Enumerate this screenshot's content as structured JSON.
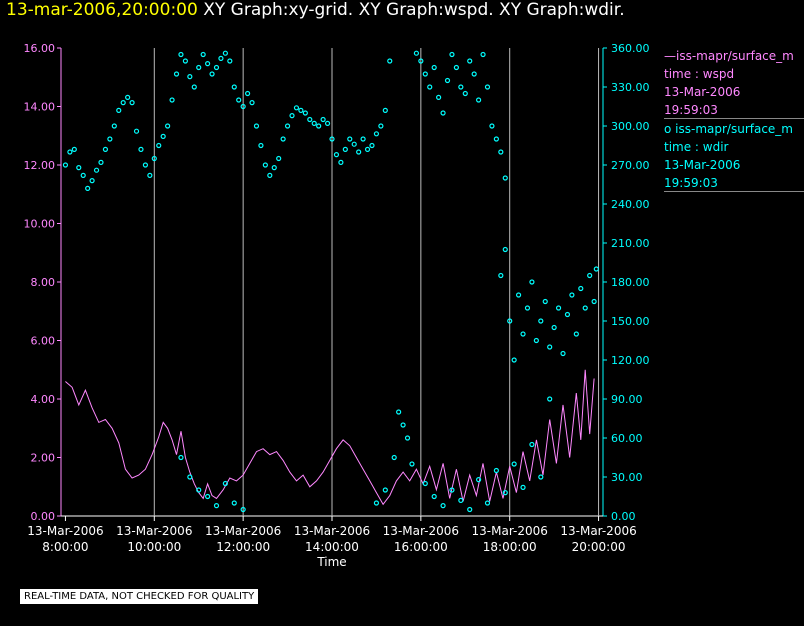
{
  "header": {
    "date": "13-mar-2006,20:00:00",
    "graphs": "XY Graph:xy-grid.  XY Graph:wspd.  XY Graph:wdir."
  },
  "legend": [
    {
      "line": "—iss-mapr/surface_m",
      "field": "time : wspd",
      "date": "13-Mar-2006",
      "time": "19:59:03",
      "color": "#ff88ff"
    },
    {
      "line": "o  iss-mapr/surface_m",
      "field": "time : wdir",
      "date": "13-Mar-2006",
      "time": "19:59:03",
      "color": "#00ffff"
    }
  ],
  "footer": "REAL-TIME DATA, NOT CHECKED FOR QUALITY",
  "chart_data": {
    "type": "line+scatter",
    "xlabel": "Time",
    "x_range_hours": [
      7.9,
      20.1
    ],
    "x_ticks": [
      {
        "hour": 8,
        "date": "13-Mar-2006",
        "time": "8:00:00"
      },
      {
        "hour": 10,
        "date": "13-Mar-2006",
        "time": "10:00:00"
      },
      {
        "hour": 12,
        "date": "13-Mar-2006",
        "time": "12:00:00"
      },
      {
        "hour": 14,
        "date": "13-Mar-2006",
        "time": "14:00:00"
      },
      {
        "hour": 16,
        "date": "13-Mar-2006",
        "time": "16:00:00"
      },
      {
        "hour": 18,
        "date": "13-Mar-2006",
        "time": "18:00:00"
      },
      {
        "hour": 20,
        "date": "13-Mar-2006",
        "time": "20:00:00"
      }
    ],
    "grid_hours": [
      10,
      12,
      14,
      16,
      18,
      20
    ],
    "left_axis": {
      "name": "wspd",
      "min": 0,
      "max": 16,
      "color": "#ff88ff",
      "ticks": [
        "0.00",
        "2.00",
        "4.00",
        "6.00",
        "8.00",
        "10.00",
        "12.00",
        "14.00",
        "16.00"
      ]
    },
    "right_axis": {
      "name": "wdir",
      "min": 0,
      "max": 360,
      "color": "#00ffff",
      "ticks": [
        "0.00",
        "30.00",
        "60.00",
        "90.00",
        "120.00",
        "150.00",
        "180.00",
        "210.00",
        "240.00",
        "270.00",
        "300.00",
        "330.00",
        "360.00"
      ]
    },
    "wspd_series": [
      [
        8.0,
        4.6
      ],
      [
        8.15,
        4.4
      ],
      [
        8.3,
        3.8
      ],
      [
        8.45,
        4.3
      ],
      [
        8.6,
        3.7
      ],
      [
        8.75,
        3.2
      ],
      [
        8.9,
        3.3
      ],
      [
        9.05,
        3.0
      ],
      [
        9.2,
        2.5
      ],
      [
        9.35,
        1.6
      ],
      [
        9.5,
        1.3
      ],
      [
        9.65,
        1.4
      ],
      [
        9.8,
        1.6
      ],
      [
        9.95,
        2.1
      ],
      [
        10.1,
        2.7
      ],
      [
        10.2,
        3.2
      ],
      [
        10.3,
        3.0
      ],
      [
        10.4,
        2.6
      ],
      [
        10.5,
        2.1
      ],
      [
        10.6,
        2.9
      ],
      [
        10.7,
        2.0
      ],
      [
        10.8,
        1.5
      ],
      [
        10.9,
        1.1
      ],
      [
        11.0,
        0.8
      ],
      [
        11.1,
        0.6
      ],
      [
        11.2,
        1.1
      ],
      [
        11.3,
        0.7
      ],
      [
        11.4,
        0.6
      ],
      [
        11.55,
        0.9
      ],
      [
        11.7,
        1.3
      ],
      [
        11.85,
        1.2
      ],
      [
        12.0,
        1.4
      ],
      [
        12.15,
        1.8
      ],
      [
        12.3,
        2.2
      ],
      [
        12.45,
        2.3
      ],
      [
        12.6,
        2.1
      ],
      [
        12.75,
        2.2
      ],
      [
        12.9,
        1.9
      ],
      [
        13.05,
        1.5
      ],
      [
        13.2,
        1.2
      ],
      [
        13.35,
        1.4
      ],
      [
        13.5,
        1.0
      ],
      [
        13.65,
        1.2
      ],
      [
        13.8,
        1.5
      ],
      [
        13.95,
        1.9
      ],
      [
        14.1,
        2.3
      ],
      [
        14.25,
        2.6
      ],
      [
        14.4,
        2.4
      ],
      [
        14.55,
        2.0
      ],
      [
        14.7,
        1.6
      ],
      [
        14.85,
        1.2
      ],
      [
        15.0,
        0.8
      ],
      [
        15.15,
        0.4
      ],
      [
        15.3,
        0.7
      ],
      [
        15.45,
        1.2
      ],
      [
        15.6,
        1.5
      ],
      [
        15.75,
        1.2
      ],
      [
        15.9,
        1.6
      ],
      [
        16.05,
        1.1
      ],
      [
        16.2,
        1.7
      ],
      [
        16.35,
        0.9
      ],
      [
        16.5,
        1.8
      ],
      [
        16.65,
        0.6
      ],
      [
        16.8,
        1.6
      ],
      [
        16.95,
        0.5
      ],
      [
        17.1,
        1.4
      ],
      [
        17.25,
        0.7
      ],
      [
        17.4,
        1.8
      ],
      [
        17.55,
        0.5
      ],
      [
        17.7,
        1.5
      ],
      [
        17.85,
        0.6
      ],
      [
        18.0,
        1.7
      ],
      [
        18.15,
        0.8
      ],
      [
        18.3,
        2.2
      ],
      [
        18.45,
        1.2
      ],
      [
        18.6,
        2.6
      ],
      [
        18.75,
        1.4
      ],
      [
        18.9,
        3.3
      ],
      [
        19.05,
        1.8
      ],
      [
        19.2,
        3.8
      ],
      [
        19.35,
        2.0
      ],
      [
        19.5,
        4.2
      ],
      [
        19.6,
        2.6
      ],
      [
        19.7,
        5.0
      ],
      [
        19.8,
        2.8
      ],
      [
        19.9,
        4.7
      ]
    ],
    "wdir_points": [
      [
        8.0,
        270
      ],
      [
        8.1,
        280
      ],
      [
        8.2,
        282
      ],
      [
        8.3,
        268
      ],
      [
        8.4,
        262
      ],
      [
        8.5,
        252
      ],
      [
        8.6,
        258
      ],
      [
        8.7,
        266
      ],
      [
        8.8,
        272
      ],
      [
        8.9,
        282
      ],
      [
        9.0,
        290
      ],
      [
        9.1,
        300
      ],
      [
        9.2,
        312
      ],
      [
        9.3,
        318
      ],
      [
        9.4,
        322
      ],
      [
        9.5,
        318
      ],
      [
        9.6,
        296
      ],
      [
        9.7,
        282
      ],
      [
        9.8,
        270
      ],
      [
        9.9,
        262
      ],
      [
        10.0,
        275
      ],
      [
        10.1,
        285
      ],
      [
        10.2,
        292
      ],
      [
        10.3,
        300
      ],
      [
        10.4,
        320
      ],
      [
        10.5,
        340
      ],
      [
        10.6,
        355
      ],
      [
        10.7,
        350
      ],
      [
        10.8,
        338
      ],
      [
        10.9,
        330
      ],
      [
        11.0,
        345
      ],
      [
        11.1,
        355
      ],
      [
        11.2,
        348
      ],
      [
        11.3,
        340
      ],
      [
        11.4,
        345
      ],
      [
        11.5,
        352
      ],
      [
        11.6,
        356
      ],
      [
        11.7,
        350
      ],
      [
        11.8,
        330
      ],
      [
        11.9,
        320
      ],
      [
        12.0,
        315
      ],
      [
        12.1,
        325
      ],
      [
        12.2,
        318
      ],
      [
        12.3,
        300
      ],
      [
        12.4,
        285
      ],
      [
        12.5,
        270
      ],
      [
        12.6,
        262
      ],
      [
        12.7,
        268
      ],
      [
        12.8,
        275
      ],
      [
        12.9,
        290
      ],
      [
        13.0,
        300
      ],
      [
        13.1,
        308
      ],
      [
        13.2,
        314
      ],
      [
        13.3,
        312
      ],
      [
        13.4,
        310
      ],
      [
        13.5,
        305
      ],
      [
        13.6,
        302
      ],
      [
        13.7,
        300
      ],
      [
        13.8,
        305
      ],
      [
        13.9,
        302
      ],
      [
        14.0,
        290
      ],
      [
        14.1,
        278
      ],
      [
        14.2,
        272
      ],
      [
        14.3,
        282
      ],
      [
        14.4,
        290
      ],
      [
        14.5,
        286
      ],
      [
        14.6,
        280
      ],
      [
        14.7,
        290
      ],
      [
        14.8,
        282
      ],
      [
        14.9,
        285
      ],
      [
        15.0,
        294
      ],
      [
        15.1,
        300
      ],
      [
        15.2,
        312
      ],
      [
        15.3,
        350
      ],
      [
        15.5,
        80
      ],
      [
        15.6,
        70
      ],
      [
        15.7,
        60
      ],
      [
        15.8,
        40
      ],
      [
        15.9,
        356
      ],
      [
        16.0,
        350
      ],
      [
        16.1,
        340
      ],
      [
        16.2,
        330
      ],
      [
        16.3,
        345
      ],
      [
        16.4,
        322
      ],
      [
        16.5,
        310
      ],
      [
        16.6,
        335
      ],
      [
        16.7,
        355
      ],
      [
        16.8,
        345
      ],
      [
        16.9,
        330
      ],
      [
        17.0,
        325
      ],
      [
        17.1,
        350
      ],
      [
        17.2,
        340
      ],
      [
        17.3,
        320
      ],
      [
        17.4,
        355
      ],
      [
        17.5,
        330
      ],
      [
        17.6,
        300
      ],
      [
        17.7,
        290
      ],
      [
        17.8,
        280
      ],
      [
        17.9,
        260
      ],
      [
        17.8,
        185
      ],
      [
        17.9,
        205
      ],
      [
        18.0,
        150
      ],
      [
        18.1,
        120
      ],
      [
        18.2,
        170
      ],
      [
        18.3,
        140
      ],
      [
        18.4,
        160
      ],
      [
        18.5,
        180
      ],
      [
        18.6,
        135
      ],
      [
        18.7,
        150
      ],
      [
        18.8,
        165
      ],
      [
        18.9,
        130
      ],
      [
        19.0,
        145
      ],
      [
        19.1,
        160
      ],
      [
        19.2,
        125
      ],
      [
        19.3,
        155
      ],
      [
        19.4,
        170
      ],
      [
        19.5,
        140
      ],
      [
        19.6,
        175
      ],
      [
        19.7,
        160
      ],
      [
        19.8,
        185
      ],
      [
        19.9,
        165
      ],
      [
        19.95,
        190
      ],
      [
        16.1,
        25
      ],
      [
        16.3,
        15
      ],
      [
        16.5,
        8
      ],
      [
        16.7,
        20
      ],
      [
        16.9,
        12
      ],
      [
        17.1,
        5
      ],
      [
        17.3,
        28
      ],
      [
        17.5,
        10
      ],
      [
        17.7,
        35
      ],
      [
        17.9,
        18
      ],
      [
        18.1,
        40
      ],
      [
        18.3,
        22
      ],
      [
        18.5,
        55
      ],
      [
        18.7,
        30
      ],
      [
        18.9,
        90
      ],
      [
        10.6,
        45
      ],
      [
        10.8,
        30
      ],
      [
        11.0,
        20
      ],
      [
        11.2,
        15
      ],
      [
        11.4,
        8
      ],
      [
        11.6,
        25
      ],
      [
        11.8,
        10
      ],
      [
        12.0,
        5
      ],
      [
        15.0,
        10
      ],
      [
        15.2,
        20
      ],
      [
        15.4,
        45
      ]
    ]
  }
}
